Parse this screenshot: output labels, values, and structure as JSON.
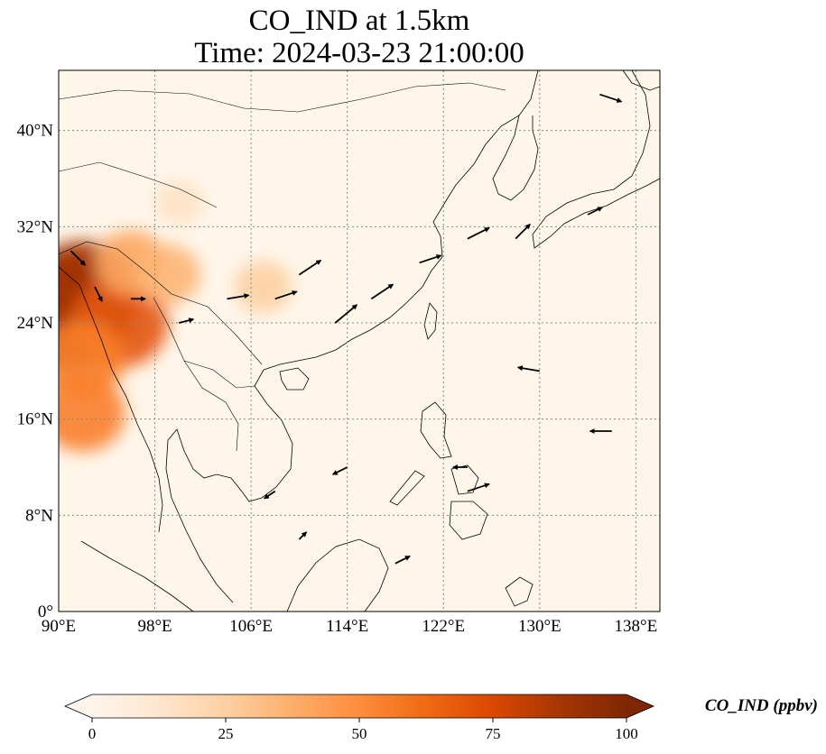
{
  "title": {
    "line1": "CO_IND at 1.5km",
    "line2": "Time: 2024-03-23 21:00:00"
  },
  "map": {
    "extent": {
      "lon": [
        90,
        140
      ],
      "lat": [
        0,
        45
      ]
    },
    "lon_ticks": [
      {
        "value": 90,
        "label": "90°E"
      },
      {
        "value": 98,
        "label": "98°E"
      },
      {
        "value": 106,
        "label": "106°E"
      },
      {
        "value": 114,
        "label": "114°E"
      },
      {
        "value": 122,
        "label": "122°E"
      },
      {
        "value": 130,
        "label": "130°E"
      },
      {
        "value": 138,
        "label": "138°E"
      }
    ],
    "lat_ticks": [
      {
        "value": 0,
        "label": "0°"
      },
      {
        "value": 8,
        "label": "8°N"
      },
      {
        "value": 16,
        "label": "16°N"
      },
      {
        "value": 24,
        "label": "24°N"
      },
      {
        "value": 32,
        "label": "32°N"
      },
      {
        "value": 40,
        "label": "40°N"
      }
    ],
    "gridlines": true,
    "background_color": "#fff6ea",
    "coastline_color": "#000000"
  },
  "colorbar": {
    "label": "CO_IND (ppbv)",
    "colormap": [
      "#fff5eb",
      "#fee6ce",
      "#fdd0a2",
      "#fdae6b",
      "#fd8d3c",
      "#f16913",
      "#d94801",
      "#a63603",
      "#7f2704"
    ],
    "min": 0,
    "max": 100,
    "extend": "both",
    "ticks": [
      {
        "value": 0,
        "label": "0"
      },
      {
        "value": 25,
        "label": "25"
      },
      {
        "value": 50,
        "label": "50"
      },
      {
        "value": 75,
        "label": "75"
      },
      {
        "value": 100,
        "label": "100"
      }
    ]
  },
  "chart_data": {
    "type": "heatmap",
    "variable": "CO_IND",
    "units": "ppbv",
    "level": "1.5km",
    "high_concentration_regions": [
      {
        "lon": 91,
        "lat": 25,
        "value": 100
      },
      {
        "lon": 92,
        "lat": 26.5,
        "value": 88
      },
      {
        "lon": 95,
        "lat": 24,
        "value": 70
      },
      {
        "lon": 92,
        "lat": 21,
        "value": 55
      },
      {
        "lon": 92,
        "lat": 16.5,
        "value": 55
      },
      {
        "lon": 96,
        "lat": 29,
        "value": 40
      },
      {
        "lon": 99,
        "lat": 28,
        "value": 35
      },
      {
        "lon": 107,
        "lat": 27,
        "value": 25
      },
      {
        "lon": 100,
        "lat": 34,
        "value": 15
      }
    ],
    "wind_vectors": [
      {
        "lon": 91,
        "lat": 30,
        "u": 2,
        "v": -2
      },
      {
        "lon": 93,
        "lat": 27,
        "u": 1,
        "v": -2
      },
      {
        "lon": 96,
        "lat": 26,
        "u": 2,
        "v": 0
      },
      {
        "lon": 100,
        "lat": 24,
        "u": 2,
        "v": 0.5
      },
      {
        "lon": 104,
        "lat": 26,
        "u": 3,
        "v": 0.5
      },
      {
        "lon": 108,
        "lat": 26,
        "u": 3,
        "v": 1
      },
      {
        "lon": 110,
        "lat": 28,
        "u": 3,
        "v": 2
      },
      {
        "lon": 113,
        "lat": 24,
        "u": 3,
        "v": 2.5
      },
      {
        "lon": 116,
        "lat": 26,
        "u": 3,
        "v": 2
      },
      {
        "lon": 120,
        "lat": 29,
        "u": 3,
        "v": 1
      },
      {
        "lon": 124,
        "lat": 31,
        "u": 3,
        "v": 1.5
      },
      {
        "lon": 128,
        "lat": 31,
        "u": 2,
        "v": 2
      },
      {
        "lon": 134,
        "lat": 33,
        "u": 2,
        "v": 1
      },
      {
        "lon": 135,
        "lat": 43,
        "u": 3,
        "v": -1
      },
      {
        "lon": 130,
        "lat": 20,
        "u": -3,
        "v": 0.5
      },
      {
        "lon": 136,
        "lat": 15,
        "u": -3,
        "v": 0
      },
      {
        "lon": 124,
        "lat": 12,
        "u": -2,
        "v": 0
      },
      {
        "lon": 124,
        "lat": 10,
        "u": 3,
        "v": 1
      },
      {
        "lon": 114,
        "lat": 12,
        "u": -2,
        "v": -1
      },
      {
        "lon": 108,
        "lat": 10,
        "u": -1.5,
        "v": -1
      },
      {
        "lon": 110,
        "lat": 6,
        "u": 1,
        "v": 1
      },
      {
        "lon": 118,
        "lat": 4,
        "u": 2,
        "v": 1
      }
    ]
  }
}
